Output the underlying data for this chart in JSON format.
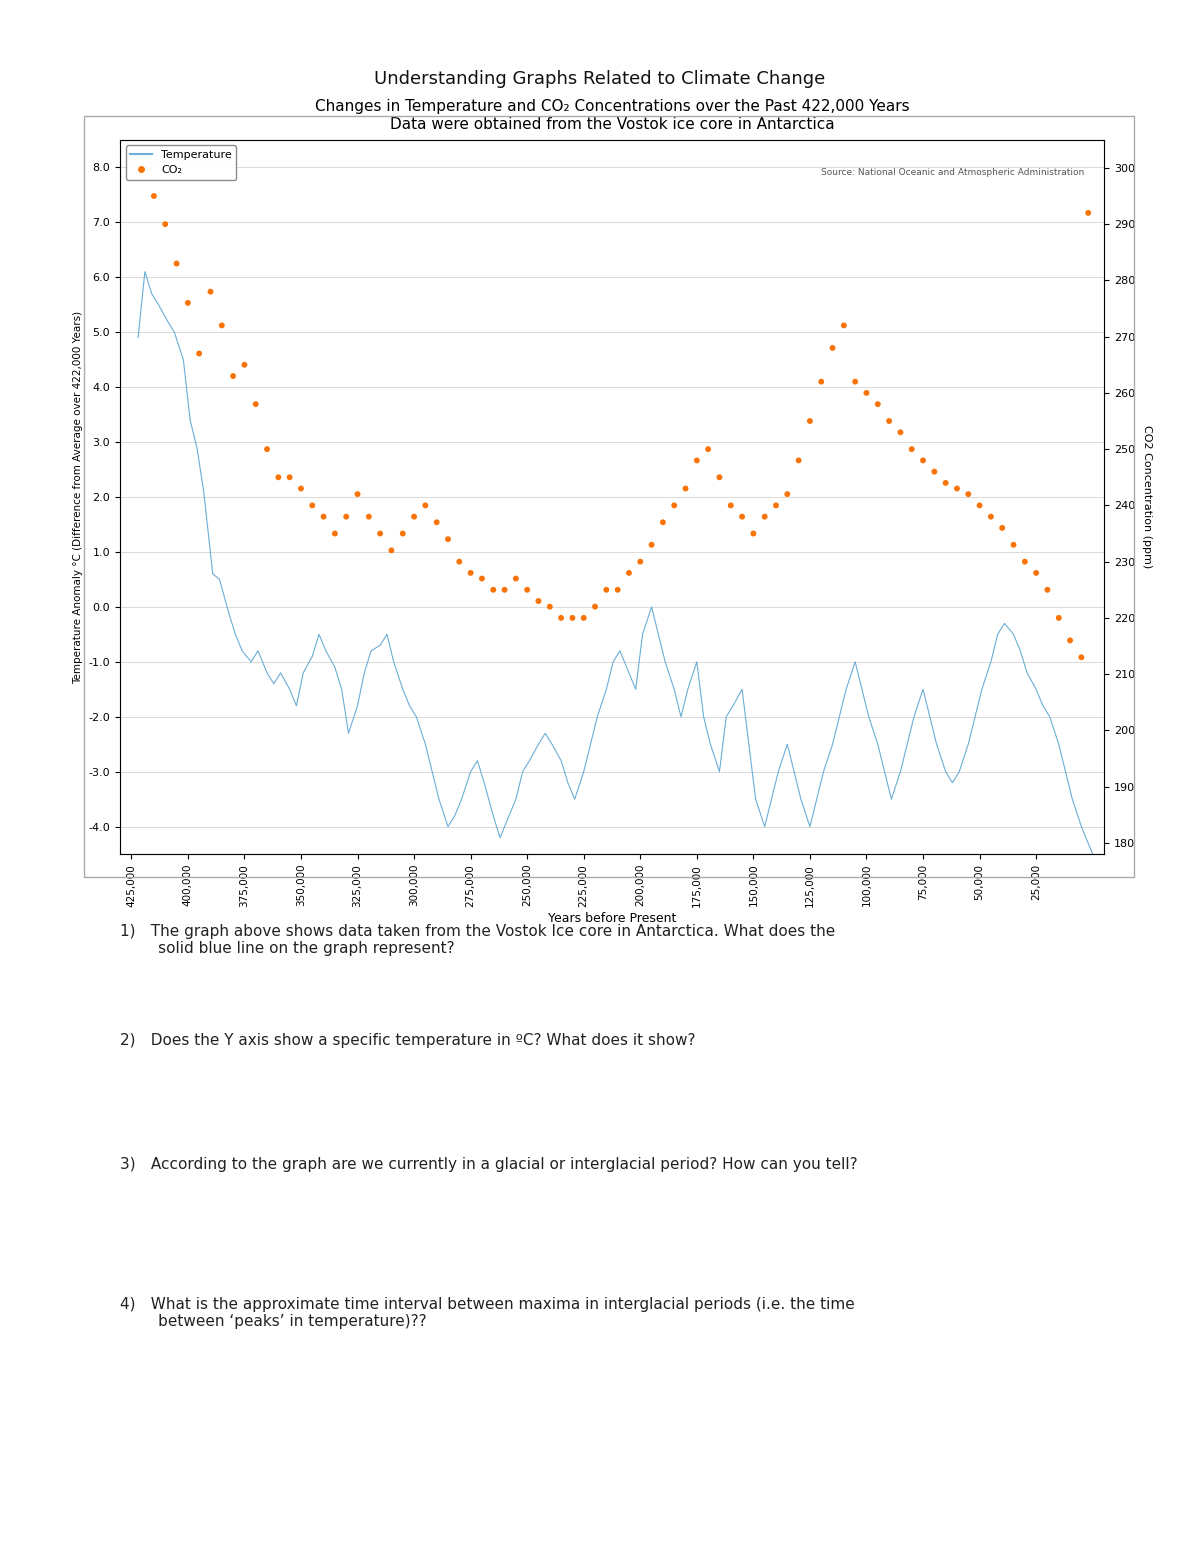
{
  "page_title": "Understanding Graphs Related to Climate Change",
  "chart_title": "Changes in Temperature and CO₂ Concentrations over the Past 422,000 Years",
  "chart_subtitle": "Data were obtained from the Vostok ice core in Antarctica",
  "source_text": "Source: National Oceanic and Atmospheric Administration",
  "xlabel": "Years before Present",
  "ylabel_left": "Temperature Anomaly °C (Difference from Average over 422,000 Years)",
  "ylabel_right": "CO2 Concentration (ppm)",
  "legend_temp": "Temperature",
  "legend_co2": "CO₂",
  "temp_color": "#6baed6",
  "co2_color": "#f97306",
  "ylim_left": [
    -4.5,
    8.5
  ],
  "ylim_right": [
    178,
    305
  ],
  "xlim": [
    430000,
    -5000
  ],
  "background_color": "#ffffff",
  "questions": [
    "1) The graph above shows data taken from the Vostok Ice core in Antarctica. What does the\n   solid blue line on the graph represent?",
    "2) Does the Y axis show a specific temperature in ºC? What does it show?",
    "3) According to the graph are we currently in a glacial or interglacial period? How can you tell?",
    "4) What is the approximate time interval between maxima in interglacial periods (i.e. the time\n   between ‘peaks’ in temperature)??"
  ],
  "temp_x": [
    422000,
    419000,
    416000,
    413000,
    409000,
    406000,
    402000,
    399000,
    396000,
    393000,
    389000,
    386000,
    382000,
    379000,
    376000,
    372000,
    369000,
    365000,
    362000,
    359000,
    355000,
    352000,
    349000,
    345000,
    342000,
    339000,
    335000,
    332000,
    329000,
    325000,
    322000,
    319000,
    315000,
    312000,
    309000,
    305000,
    302000,
    299000,
    295000,
    292000,
    289000,
    285000,
    282000,
    279000,
    275000,
    272000,
    269000,
    265000,
    262000,
    259000,
    255000,
    252000,
    249000,
    245000,
    242000,
    239000,
    235000,
    232000,
    229000,
    225000,
    222000,
    219000,
    215000,
    212000,
    209000,
    205000,
    202000,
    199000,
    195000,
    192000,
    189000,
    185000,
    182000,
    179000,
    175000,
    172000,
    169000,
    165000,
    162000,
    159000,
    155000,
    152000,
    149000,
    145000,
    142000,
    139000,
    135000,
    132000,
    129000,
    125000,
    122000,
    119000,
    115000,
    112000,
    109000,
    105000,
    102000,
    99000,
    95000,
    92000,
    89000,
    85000,
    82000,
    79000,
    75000,
    72000,
    69000,
    65000,
    62000,
    59000,
    55000,
    52000,
    49000,
    45000,
    42000,
    39000,
    35000,
    32000,
    29000,
    25000,
    22000,
    19000,
    15000,
    12000,
    9000,
    5000,
    2000,
    0
  ],
  "temp_y": [
    4.9,
    6.1,
    5.7,
    5.5,
    5.2,
    5.0,
    4.5,
    3.4,
    2.9,
    2.1,
    0.6,
    0.5,
    -0.1,
    -0.5,
    -0.8,
    -1.0,
    -0.8,
    -1.2,
    -1.4,
    -1.2,
    -1.5,
    -1.8,
    -1.2,
    -0.9,
    -0.5,
    -0.8,
    -1.1,
    -1.5,
    -2.3,
    -1.8,
    -1.2,
    -0.8,
    -0.7,
    -0.5,
    -1.0,
    -1.5,
    -1.8,
    -2.0,
    -2.5,
    -3.0,
    -3.5,
    -4.0,
    -3.8,
    -3.5,
    -3.0,
    -2.8,
    -3.2,
    -3.8,
    -4.2,
    -3.9,
    -3.5,
    -3.0,
    -2.8,
    -2.5,
    -2.3,
    -2.5,
    -2.8,
    -3.2,
    -3.5,
    -3.0,
    -2.5,
    -2.0,
    -1.5,
    -1.0,
    -0.8,
    -1.2,
    -1.5,
    -0.5,
    0.0,
    -0.5,
    -1.0,
    -1.5,
    -2.0,
    -1.5,
    -1.0,
    -2.0,
    -2.5,
    -3.0,
    -2.0,
    -1.8,
    -1.5,
    -2.5,
    -3.5,
    -4.0,
    -3.5,
    -3.0,
    -2.5,
    -3.0,
    -3.5,
    -4.0,
    -3.5,
    -3.0,
    -2.5,
    -2.0,
    -1.5,
    -1.0,
    -1.5,
    -2.0,
    -2.5,
    -3.0,
    -3.5,
    -3.0,
    -2.5,
    -2.0,
    -1.5,
    -2.0,
    -2.5,
    -3.0,
    -3.2,
    -3.0,
    -2.5,
    -2.0,
    -1.5,
    -1.0,
    -0.5,
    -0.3,
    -0.5,
    -0.8,
    -1.2,
    -1.5,
    -1.8,
    -2.0,
    -2.5,
    -3.0,
    -3.5,
    -4.0,
    -4.3,
    -4.5
  ],
  "co2_x": [
    415000,
    410000,
    405000,
    400000,
    395000,
    390000,
    385000,
    380000,
    375000,
    370000,
    365000,
    360000,
    355000,
    350000,
    345000,
    340000,
    335000,
    330000,
    325000,
    320000,
    315000,
    310000,
    305000,
    300000,
    295000,
    290000,
    285000,
    280000,
    275000,
    270000,
    265000,
    260000,
    255000,
    250000,
    245000,
    240000,
    235000,
    230000,
    225000,
    220000,
    215000,
    210000,
    205000,
    200000,
    195000,
    190000,
    185000,
    180000,
    175000,
    170000,
    165000,
    160000,
    155000,
    150000,
    145000,
    140000,
    135000,
    130000,
    125000,
    120000,
    115000,
    110000,
    105000,
    100000,
    95000,
    90000,
    85000,
    80000,
    75000,
    70000,
    65000,
    60000,
    55000,
    50000,
    45000,
    40000,
    35000,
    30000,
    25000,
    20000,
    15000,
    10000,
    5000,
    2000
  ],
  "co2_y": [
    295,
    290,
    283,
    276,
    267,
    278,
    272,
    263,
    265,
    258,
    250,
    245,
    245,
    243,
    240,
    238,
    235,
    238,
    242,
    238,
    235,
    232,
    235,
    238,
    240,
    237,
    234,
    230,
    228,
    227,
    225,
    225,
    227,
    225,
    223,
    222,
    220,
    220,
    220,
    222,
    225,
    225,
    228,
    230,
    233,
    237,
    240,
    243,
    248,
    250,
    245,
    240,
    238,
    235,
    238,
    240,
    242,
    248,
    255,
    262,
    268,
    272,
    262,
    260,
    258,
    255,
    253,
    250,
    248,
    246,
    244,
    243,
    242,
    240,
    238,
    236,
    233,
    230,
    228,
    225,
    220,
    216,
    213,
    292
  ]
}
